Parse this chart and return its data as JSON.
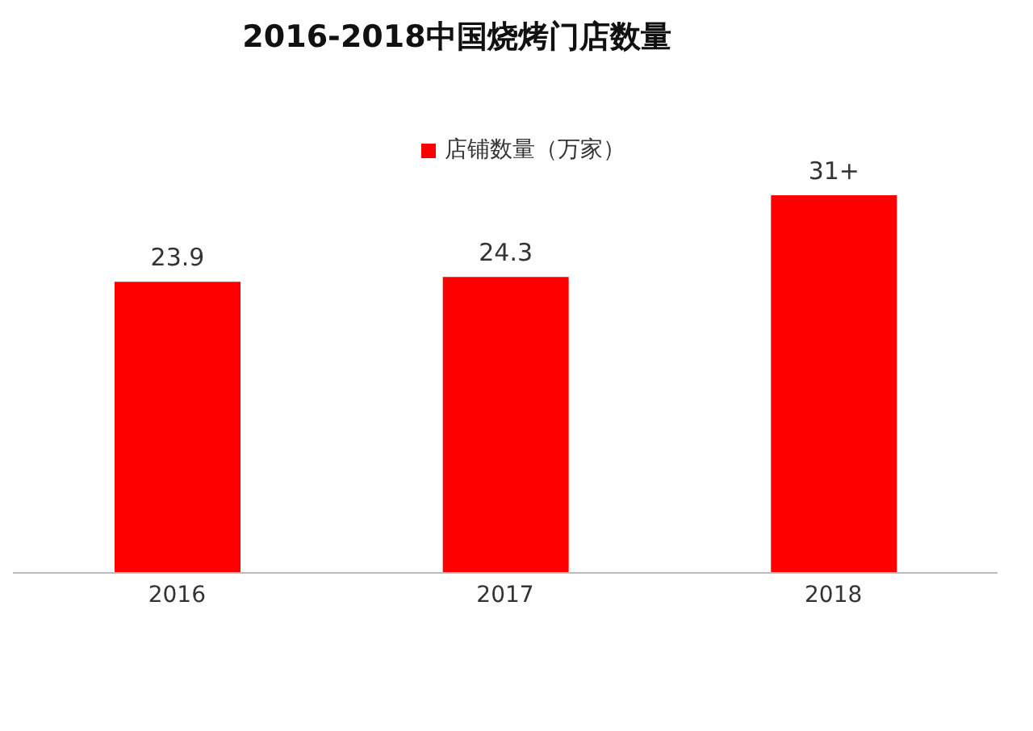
{
  "chart_data": {
    "type": "bar",
    "title": "2016-2018中国烧烤门店数量",
    "categories": [
      "2016",
      "2017",
      "2018"
    ],
    "series": [
      {
        "name": "店铺数量（万家）",
        "color": "#ff0000",
        "values": [
          23.9,
          24.3,
          31
        ],
        "value_labels": [
          "23.9",
          "24.3",
          "31+"
        ]
      }
    ],
    "legend": "top",
    "grid": false
  }
}
